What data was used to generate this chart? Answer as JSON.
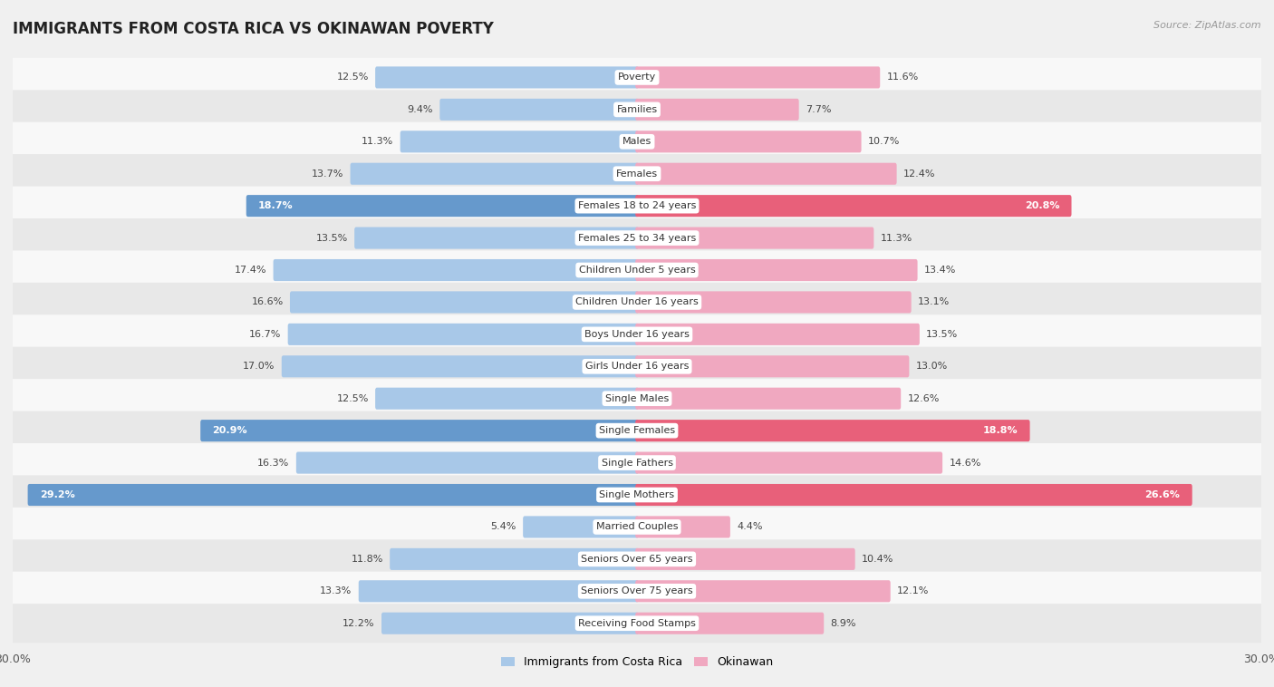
{
  "title": "IMMIGRANTS FROM COSTA RICA VS OKINAWAN POVERTY",
  "source": "Source: ZipAtlas.com",
  "categories": [
    "Poverty",
    "Families",
    "Males",
    "Females",
    "Females 18 to 24 years",
    "Females 25 to 34 years",
    "Children Under 5 years",
    "Children Under 16 years",
    "Boys Under 16 years",
    "Girls Under 16 years",
    "Single Males",
    "Single Females",
    "Single Fathers",
    "Single Mothers",
    "Married Couples",
    "Seniors Over 65 years",
    "Seniors Over 75 years",
    "Receiving Food Stamps"
  ],
  "left_values": [
    12.5,
    9.4,
    11.3,
    13.7,
    18.7,
    13.5,
    17.4,
    16.6,
    16.7,
    17.0,
    12.5,
    20.9,
    16.3,
    29.2,
    5.4,
    11.8,
    13.3,
    12.2
  ],
  "right_values": [
    11.6,
    7.7,
    10.7,
    12.4,
    20.8,
    11.3,
    13.4,
    13.1,
    13.5,
    13.0,
    12.6,
    18.8,
    14.6,
    26.6,
    4.4,
    10.4,
    12.1,
    8.9
  ],
  "left_color": "#a8c8e8",
  "right_color": "#f0a8c0",
  "highlight_left_color": "#6699cc",
  "highlight_right_color": "#e8607a",
  "highlight_rows": [
    4,
    11,
    13
  ],
  "max_val": 30.0,
  "legend_left": "Immigrants from Costa Rica",
  "legend_right": "Okinawan",
  "bg_color": "#f0f0f0",
  "row_bg_light": "#f8f8f8",
  "row_bg_dark": "#e8e8e8",
  "title_fontsize": 12,
  "label_fontsize": 8,
  "value_fontsize": 8
}
